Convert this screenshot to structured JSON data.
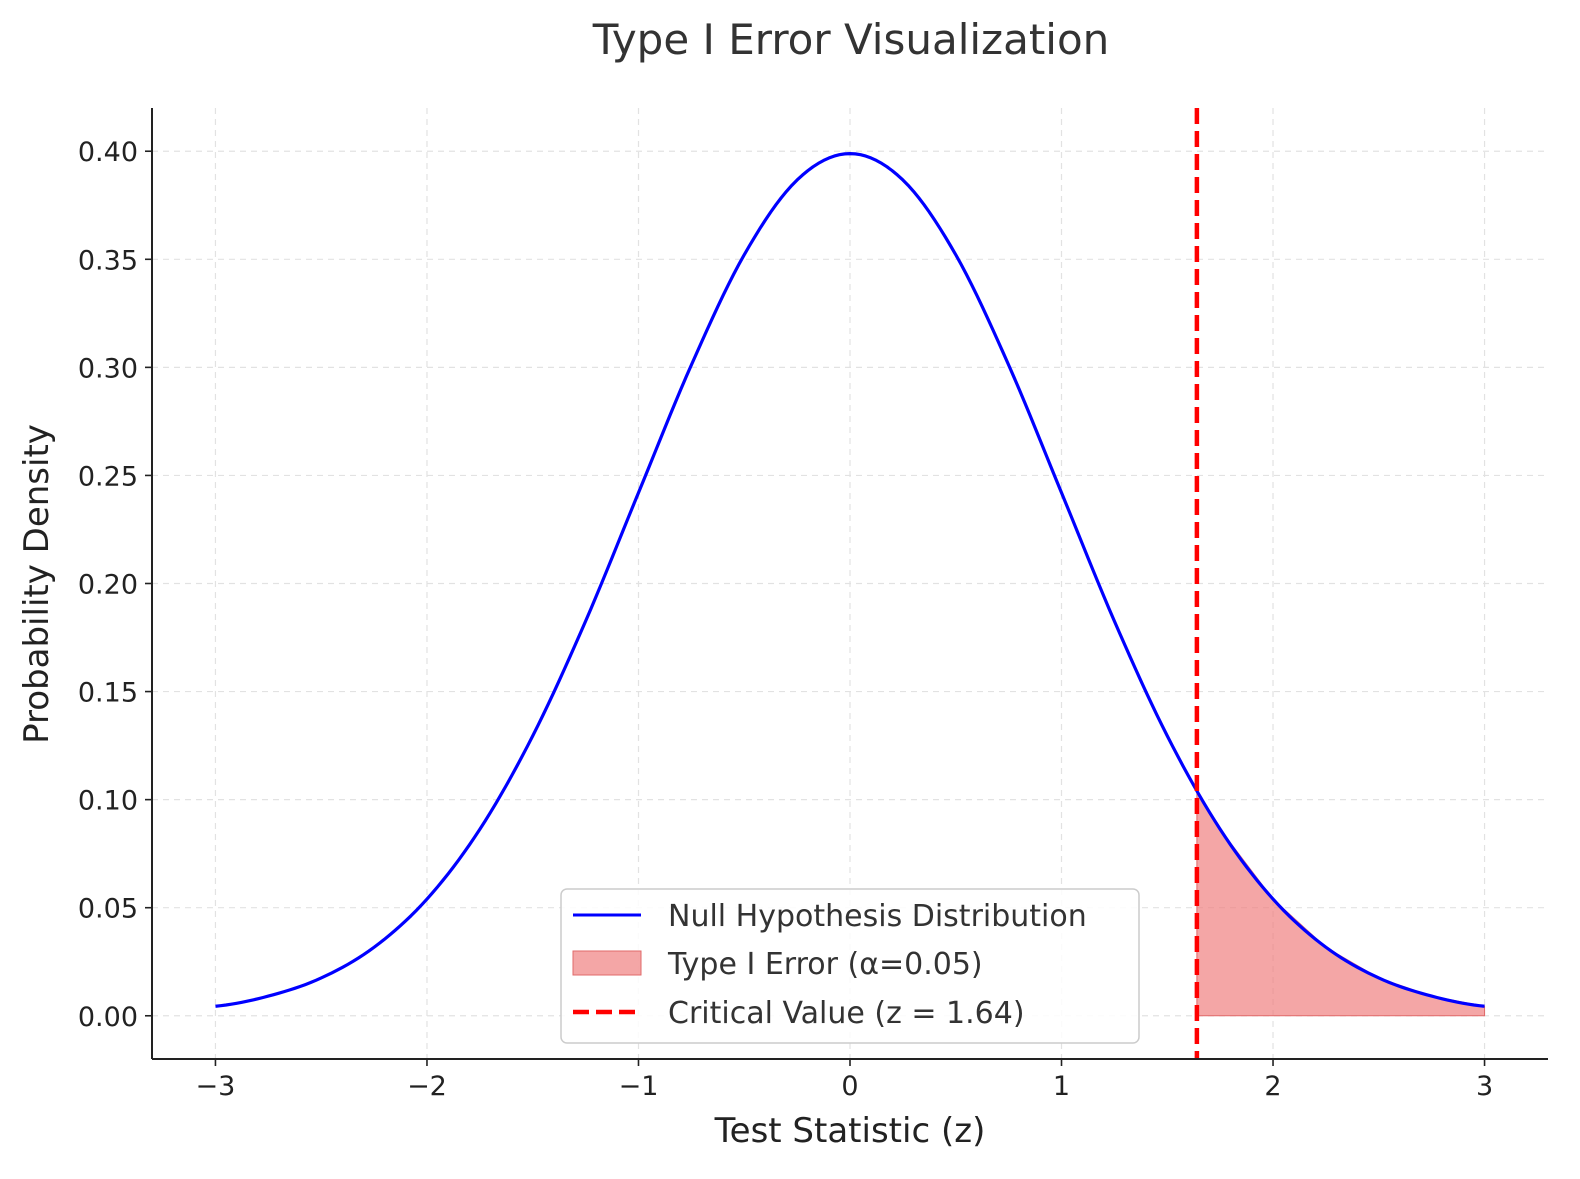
{
  "chart_data": {
    "type": "line",
    "title": "Type I Error Visualization",
    "xlabel": "Test Statistic (z)",
    "ylabel": "Probability Density",
    "xlim": [
      -3.3,
      3.3
    ],
    "ylim": [
      -0.02,
      0.42
    ],
    "x_ticks": [
      -3,
      -2,
      -1,
      0,
      1,
      2,
      3
    ],
    "x_tick_labels": [
      "−3",
      "−2",
      "−1",
      "0",
      "1",
      "2",
      "3"
    ],
    "y_ticks": [
      0.0,
      0.05,
      0.1,
      0.15,
      0.2,
      0.25,
      0.3,
      0.35,
      0.4
    ],
    "y_tick_labels": [
      "0.00",
      "0.05",
      "0.10",
      "0.15",
      "0.20",
      "0.25",
      "0.30",
      "0.35",
      "0.40"
    ],
    "grid": true,
    "legend_position": "bottom-center",
    "series": [
      {
        "name": "Null Hypothesis Distribution",
        "kind": "line",
        "color": "#0000ff",
        "x": [
          -3.0,
          -2.75,
          -2.5,
          -2.25,
          -2.0,
          -1.75,
          -1.5,
          -1.25,
          -1.0,
          -0.75,
          -0.5,
          -0.25,
          0.0,
          0.25,
          0.5,
          0.75,
          1.0,
          1.25,
          1.5,
          1.75,
          2.0,
          2.25,
          2.5,
          2.75,
          3.0
        ],
        "y": [
          0.0044,
          0.0091,
          0.0175,
          0.0317,
          0.054,
          0.0863,
          0.1295,
          0.1826,
          0.242,
          0.3011,
          0.3521,
          0.3867,
          0.3989,
          0.3867,
          0.3521,
          0.3011,
          0.242,
          0.1826,
          0.1295,
          0.0863,
          0.054,
          0.0317,
          0.0175,
          0.0091,
          0.0044
        ]
      },
      {
        "name": "Type I Error (α=0.05)",
        "kind": "area",
        "color": "#f08080",
        "x": [
          1.64,
          1.75,
          2.0,
          2.25,
          2.5,
          2.75,
          3.0
        ],
        "y": [
          0.104,
          0.0863,
          0.054,
          0.0317,
          0.0175,
          0.0091,
          0.0044
        ]
      },
      {
        "name": "Critical Value (z = 1.64)",
        "kind": "vline",
        "color": "#ff0000",
        "x": 1.64
      }
    ]
  }
}
